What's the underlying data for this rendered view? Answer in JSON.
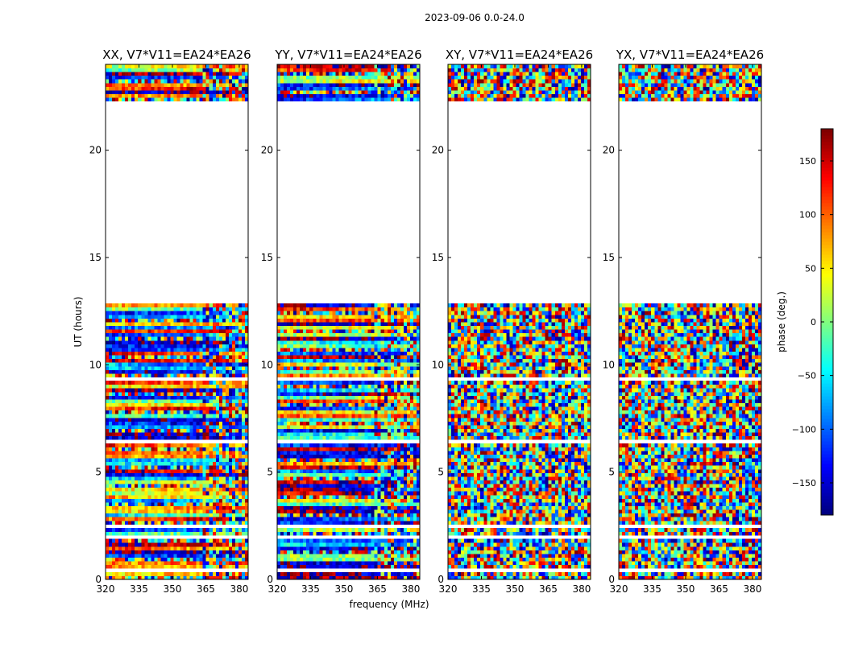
{
  "chart_data": {
    "type": "heatmap",
    "suptitle": "2023-09-06 0.0-24.0",
    "xlabel": "frequency (MHz)",
    "ylabel": "UT (hours)",
    "xlim": [
      320,
      384
    ],
    "ylim": [
      0,
      24
    ],
    "xticks": [
      "320",
      "335",
      "350",
      "365",
      "380"
    ],
    "yticks": [
      "0",
      "5",
      "10",
      "15",
      "20"
    ],
    "colorbar": {
      "label": "phase (deg.)",
      "range": [
        -180,
        180
      ],
      "ticks": [
        "150",
        "100",
        "50",
        "0",
        "−50",
        "−100",
        "−150"
      ],
      "tick_values": [
        150,
        100,
        50,
        0,
        -50,
        -100,
        -150
      ],
      "colormap": "jet"
    },
    "panels": [
      {
        "title": "XX, V7*V11=EA24*EA26",
        "pattern": "coherent"
      },
      {
        "title": "YY, V7*V11=EA24*EA26",
        "pattern": "coherent"
      },
      {
        "title": "XY, V7*V11=EA24*EA26",
        "pattern": "noise"
      },
      {
        "title": "YX, V7*V11=EA24*EA26",
        "pattern": "noise"
      }
    ],
    "data_gaps_ut_hours": [
      [
        12.8,
        22.3
      ]
    ]
  }
}
